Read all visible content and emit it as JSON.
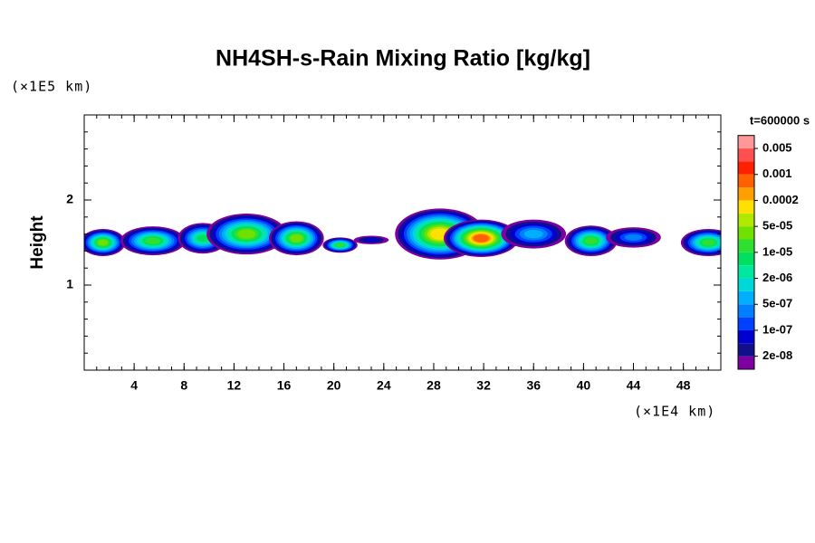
{
  "chart_data": {
    "type": "contour",
    "title": "NH4SH-s-Rain Mixing Ratio [kg/kg]",
    "y_unit": "(×1E5 km)",
    "x_unit": "(×1E4 km)",
    "ylabel": "Height",
    "time_label": "t=600000 s",
    "xlim": [
      0,
      51
    ],
    "xticks": [
      4,
      8,
      12,
      16,
      20,
      24,
      28,
      32,
      36,
      40,
      44,
      48
    ],
    "ylim": [
      0,
      3
    ],
    "yticks": [
      1,
      2
    ],
    "colors": [
      "#7f00a0",
      "#10108c",
      "#0000d0",
      "#0040ff",
      "#0080ff",
      "#00b0ff",
      "#00d8d8",
      "#00e8a0",
      "#00e060",
      "#30e030",
      "#70e000",
      "#b0e800",
      "#ffe000",
      "#ffa000",
      "#ff6000",
      "#ff2000",
      "#ff5050",
      "#ff9898"
    ],
    "levels": [
      {
        "value": 2e-08,
        "label": "2e-08"
      },
      {
        "value": 1e-07,
        "label": "1e-07"
      },
      {
        "value": 5e-07,
        "label": "5e-07"
      },
      {
        "value": 2e-06,
        "label": "2e-06"
      },
      {
        "value": 1e-05,
        "label": "1e-05"
      },
      {
        "value": 5e-05,
        "label": "5e-05"
      },
      0.0002,
      0.001,
      0.005
    ]
  }
}
